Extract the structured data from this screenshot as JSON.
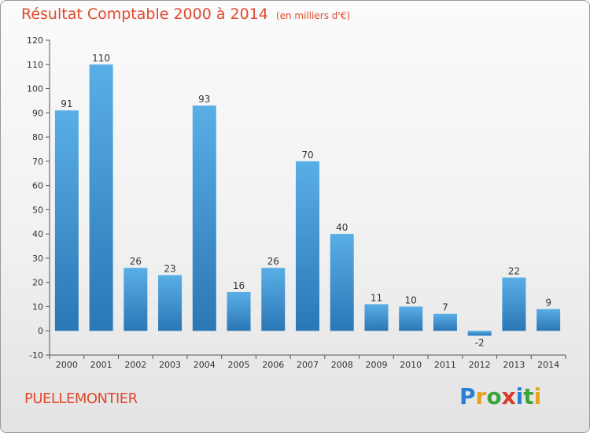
{
  "header": {
    "title": "Résultat Comptable 2000 à 2014",
    "unit": "(en milliers d'€)"
  },
  "commune": "PUELLEMONTIER",
  "logo": {
    "text": "Proxiti",
    "letters": [
      "P",
      "r",
      "o",
      "x",
      "i",
      "t",
      "i"
    ],
    "colors": [
      "#2a7fd4",
      "#e8a020",
      "#3aa63a",
      "#d83a2a",
      "#2a7fd4",
      "#3aa63a",
      "#e8a020"
    ]
  },
  "colors": {
    "bar_light": "#5aaee6",
    "bar_dark": "#2a77b6",
    "title": "#e04a2e",
    "axis": "#555555"
  },
  "chart_data": {
    "type": "bar",
    "title": "Résultat Comptable 2000 à 2014",
    "subtitle": "(en milliers d'€)",
    "categories": [
      "2000",
      "2001",
      "2002",
      "2003",
      "2004",
      "2005",
      "2006",
      "2007",
      "2008",
      "2009",
      "2010",
      "2011",
      "2012",
      "2013",
      "2014"
    ],
    "values": [
      91,
      110,
      26,
      23,
      93,
      16,
      26,
      70,
      40,
      11,
      10,
      7,
      -2,
      22,
      9
    ],
    "ylim": [
      -10,
      120
    ],
    "yticks": [
      -10,
      0,
      10,
      20,
      30,
      40,
      50,
      60,
      70,
      80,
      90,
      100,
      110,
      120
    ],
    "grid": false,
    "xlabel": "",
    "ylabel": ""
  }
}
